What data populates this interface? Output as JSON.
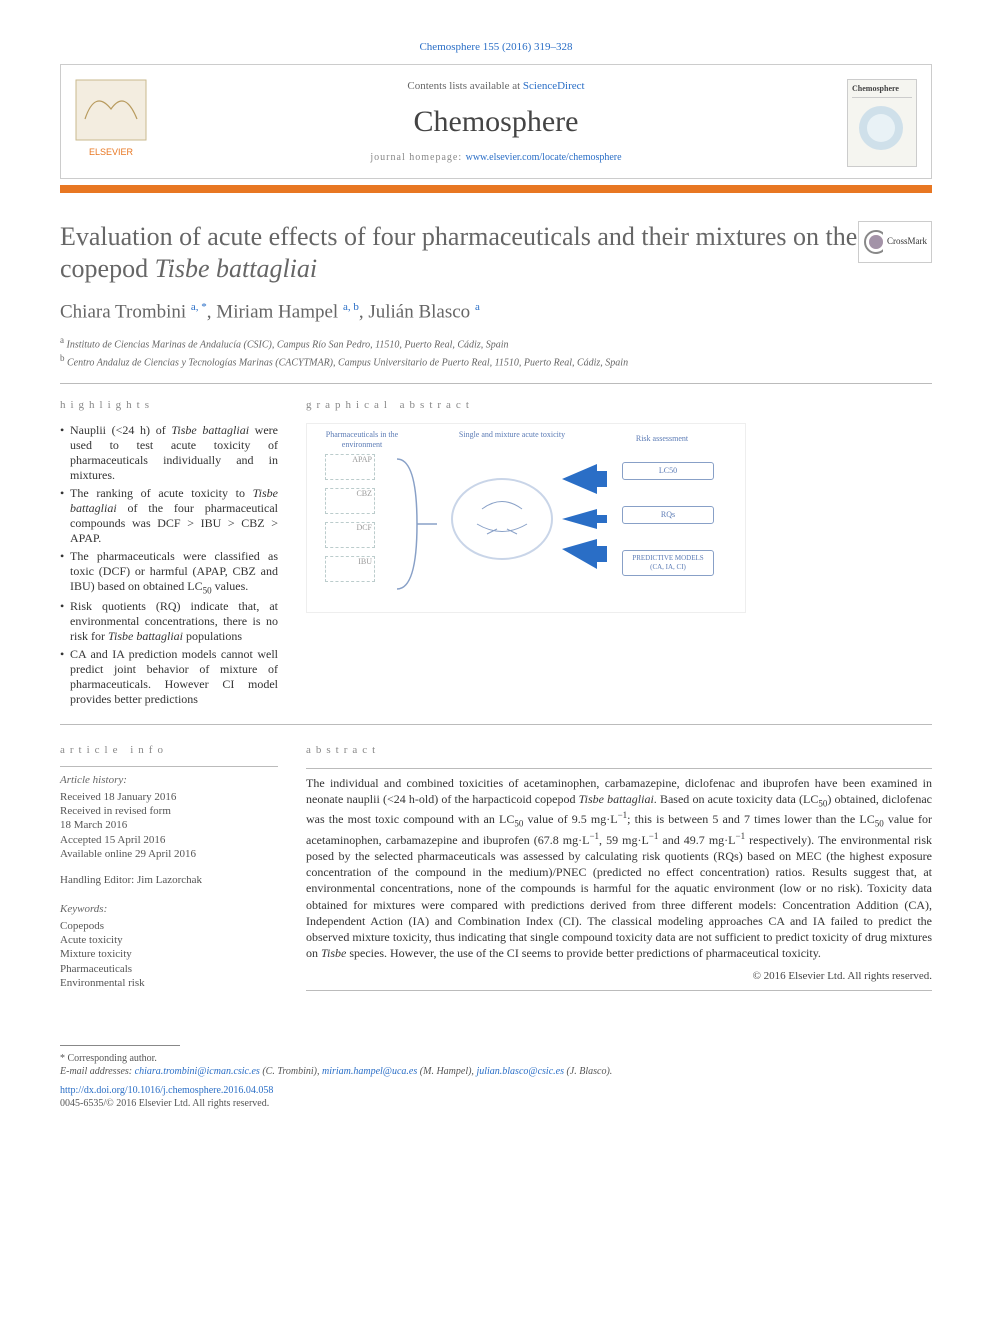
{
  "header": {
    "citation": "Chemosphere 155 (2016) 319–328",
    "contents_prefix": "Contents lists available at ",
    "contents_link": "ScienceDirect",
    "journal_name": "Chemosphere",
    "homepage_prefix": "journal homepage: ",
    "homepage_link": "www.elsevier.com/locate/chemosphere",
    "publisher": "ELSEVIER",
    "cover_label": "Chemosphere"
  },
  "crossmark": {
    "label": "CrossMark"
  },
  "article": {
    "title_pre": "Evaluation of acute effects of four pharmaceuticals and their mixtures on the copepod ",
    "title_italic": "Tisbe battagliai",
    "authors_html": "Chiara Trombini <sup>a, *</sup>, Miriam Hampel <sup>a, b</sup>, Julián Blasco <sup>a</sup>",
    "affiliations": [
      {
        "sup": "a",
        "text": " Instituto de Ciencias Marinas de Andalucía (CSIC), Campus Río San Pedro, 11510, Puerto Real, Cádiz, Spain"
      },
      {
        "sup": "b",
        "text": " Centro Andaluz de Ciencias y Tecnologías Marinas (CACYTMAR), Campus Universitario de Puerto Real, 11510, Puerto Real, Cádiz, Spain"
      }
    ]
  },
  "highlights": {
    "heading": "highlights",
    "items": [
      "Nauplii (<24 h) of <i>Tisbe battagliai</i> were used to test acute toxicity of pharmaceuticals individually and in mixtures.",
      "The ranking of acute toxicity to <i>Tisbe battagliai</i> of the four pharmaceutical compounds was DCF > IBU > CBZ > APAP.",
      "The pharmaceuticals were classified as toxic (DCF) or harmful (APAP, CBZ and IBU) based on obtained LC<sub>50</sub> values.",
      "Risk quotients (RQ) indicate that, at environmental concentrations, there is no risk for <i>Tisbe battagliai</i> populations",
      "CA and IA prediction models cannot well predict joint behavior of mixture of pharmaceuticals. However CI model provides better predictions"
    ]
  },
  "graphical_abstract": {
    "heading": "graphical abstract",
    "label_left": "Pharmaceuticals in the environment",
    "label_mid": "Single and mixture acute toxicity",
    "label_right": "Risk assessment",
    "mol_labels": [
      "APAP",
      "CBZ",
      "DCF",
      "IBU"
    ],
    "box_lc50": "LC50",
    "box_rqs": "RQs",
    "box_models": "PREDICTIVE MODELS (CA, IA, CI)",
    "colors": {
      "border": "#88a0c7",
      "text": "#5b7bb5",
      "arrow": "#2a6ec6",
      "circle": "#c9d5e8"
    }
  },
  "article_info": {
    "heading": "article info",
    "history_label": "Article history:",
    "history": [
      "Received 18 January 2016",
      "Received in revised form",
      "18 March 2016",
      "Accepted 15 April 2016",
      "Available online 29 April 2016"
    ],
    "editor_label": "Handling Editor: Jim Lazorchak",
    "keywords_label": "Keywords:",
    "keywords": [
      "Copepods",
      "Acute toxicity",
      "Mixture toxicity",
      "Pharmaceuticals",
      "Environmental risk"
    ]
  },
  "abstract": {
    "heading": "abstract",
    "text": "The individual and combined toxicities of acetaminophen, carbamazepine, diclofenac and ibuprofen have been examined in neonate nauplii (<24 h-old) of the harpacticoid copepod <i>Tisbe battagliai</i>. Based on acute toxicity data (LC<sub>50</sub>) obtained, diclofenac was the most toxic compound with an LC<sub>50</sub> value of 9.5 mg·L<sup>−1</sup>; this is between 5 and 7 times lower than the LC<sub>50</sub> value for acetaminophen, carbamazepine and ibuprofen (67.8 mg·L<sup>−1</sup>, 59 mg·L<sup>−1</sup> and 49.7 mg·L<sup>−1</sup> respectively). The environmental risk posed by the selected pharmaceuticals was assessed by calculating risk quotients (RQs) based on MEC (the highest exposure concentration of the compound in the medium)/PNEC (predicted no effect concentration) ratios. Results suggest that, at environmental concentrations, none of the compounds is harmful for the aquatic environment (low or no risk). Toxicity data obtained for mixtures were compared with predictions derived from three different models: Concentration Addition (CA), Independent Action (IA) and Combination Index (CI). The classical modeling approaches CA and IA failed to predict the observed mixture toxicity, thus indicating that single compound toxicity data are not sufficient to predict toxicity of drug mixtures on <i>Tisbe</i> species. However, the use of the CI seems to provide better predictions of pharmaceutical toxicity.",
    "copyright": "© 2016 Elsevier Ltd. All rights reserved."
  },
  "footer": {
    "corresponding": "* Corresponding author.",
    "emails_label": "E-mail addresses: ",
    "emails": [
      {
        "addr": "chiara.trombini@icman.csic.es",
        "who": " (C. Trombini), "
      },
      {
        "addr": "miriam.hampel@uca.es",
        "who": " (M. Hampel), "
      },
      {
        "addr": "julian.blasco@csic.es",
        "who": " (J. Blasco)."
      }
    ],
    "doi": "http://dx.doi.org/10.1016/j.chemosphere.2016.04.058",
    "issn_line": "0045-6535/© 2016 Elsevier Ltd. All rights reserved."
  }
}
